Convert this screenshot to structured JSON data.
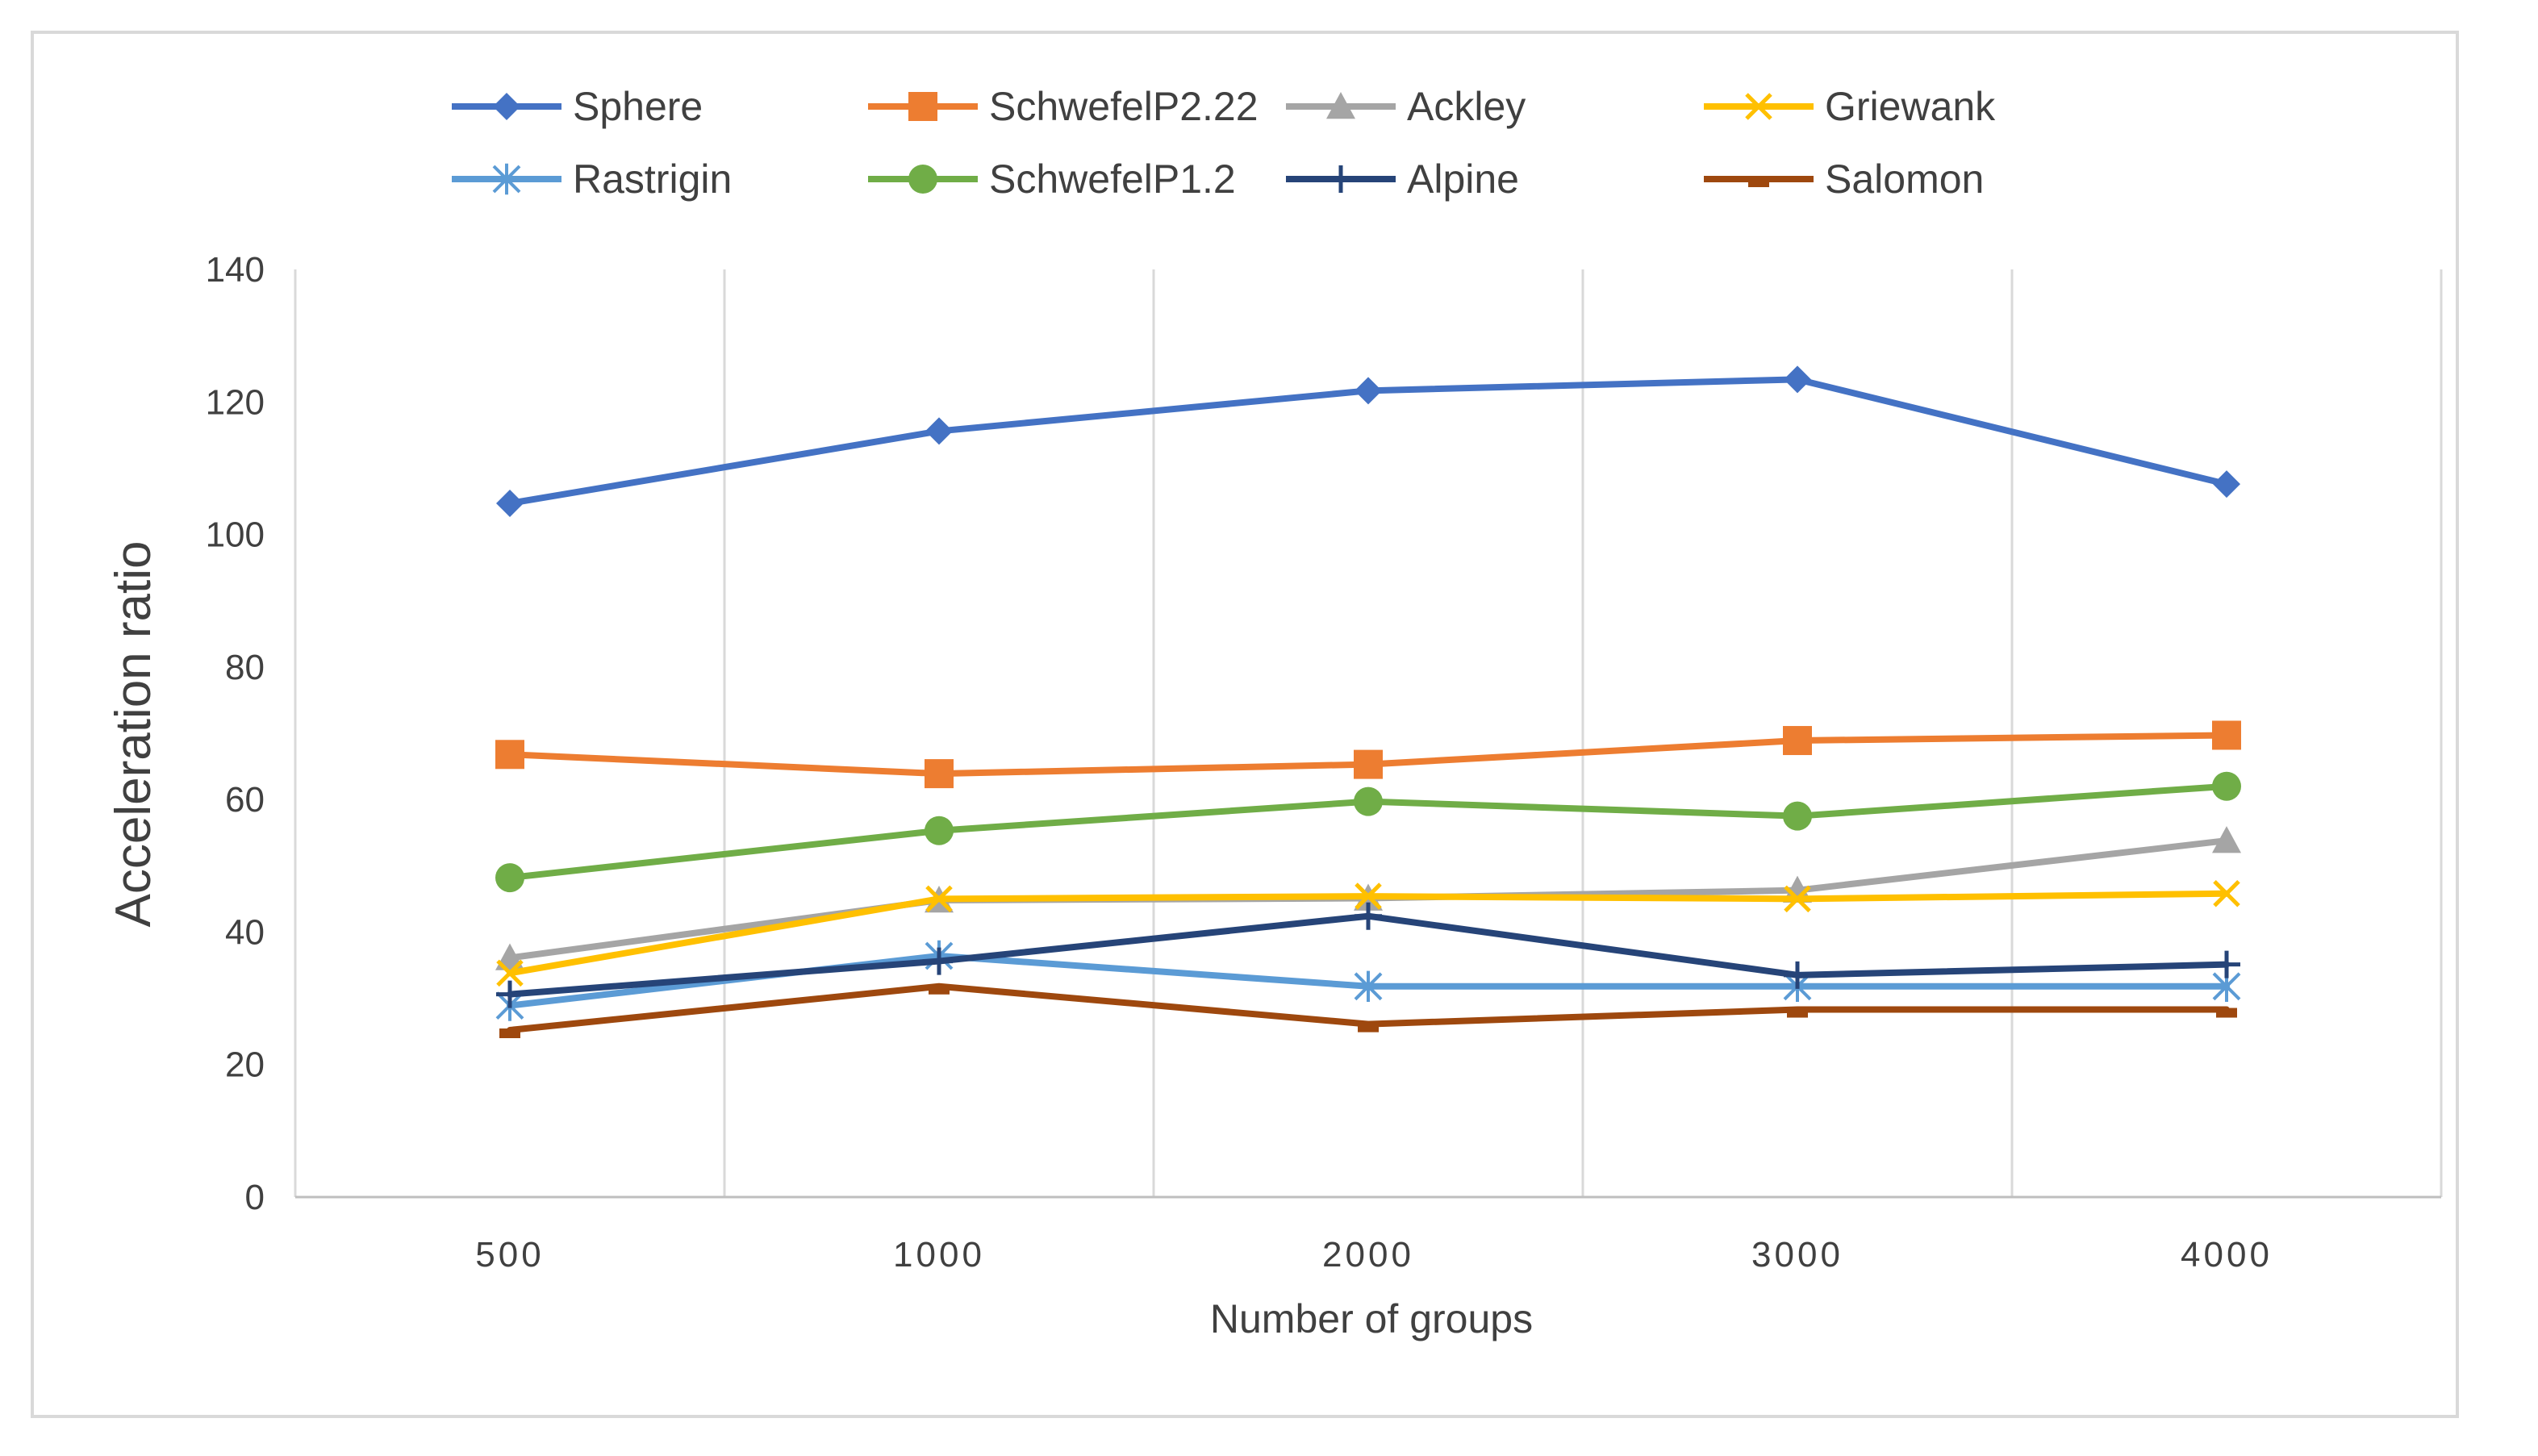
{
  "chart_data": {
    "type": "line",
    "title": "",
    "xlabel": "Number of groups",
    "ylabel": "Acceleration ratio",
    "categories": [
      "500",
      "1000",
      "2000",
      "3000",
      "4000"
    ],
    "ylim": [
      0,
      140
    ],
    "yticks": [
      0,
      20,
      40,
      60,
      80,
      100,
      120,
      140
    ],
    "grid": "vertical",
    "legend": "top",
    "series": [
      {
        "name": "Sphere",
        "values": [
          104.7,
          115.6,
          121.7,
          123.4,
          107.6
        ],
        "color": "#4472C4",
        "marker": "diamond"
      },
      {
        "name": "SchwefelP2.22",
        "values": [
          66.8,
          63.9,
          65.3,
          68.9,
          69.7
        ],
        "color": "#ED7D31",
        "marker": "square"
      },
      {
        "name": "Ackley",
        "values": [
          36.1,
          44.8,
          45.1,
          46.3,
          53.8
        ],
        "color": "#A5A5A5",
        "marker": "triangle"
      },
      {
        "name": "Griewank",
        "values": [
          33.8,
          45.0,
          45.4,
          45.0,
          45.8
        ],
        "color": "#FFC000",
        "marker": "x"
      },
      {
        "name": "Rastrigin",
        "values": [
          28.9,
          36.4,
          31.8,
          31.8,
          31.8
        ],
        "color": "#5B9BD5",
        "marker": "star"
      },
      {
        "name": "SchwefelP1.2",
        "values": [
          48.2,
          55.3,
          59.7,
          57.5,
          62.0
        ],
        "color": "#70AD47",
        "marker": "circle"
      },
      {
        "name": "Alpine",
        "values": [
          30.6,
          35.6,
          42.4,
          33.5,
          35.1
        ],
        "color": "#264478",
        "marker": "plus"
      },
      {
        "name": "Salomon",
        "values": [
          25.2,
          31.8,
          26.1,
          28.3,
          28.3
        ],
        "color": "#9E480E",
        "marker": "dash"
      }
    ]
  }
}
